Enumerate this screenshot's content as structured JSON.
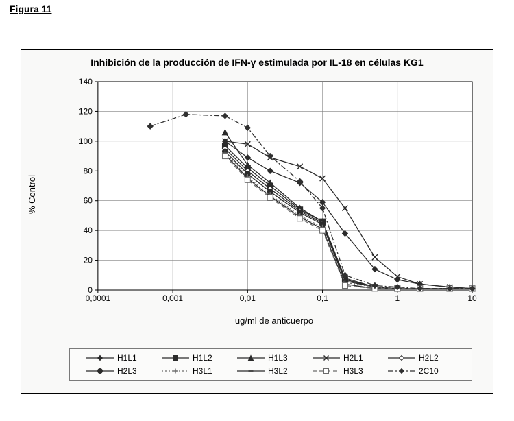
{
  "figure_label": "Figura 11",
  "chart": {
    "type": "line",
    "title": "Inhibición de la producción de IFN-γ estimulada por IL-18 en células KG1",
    "xlabel": "ug/ml de anticuerpo",
    "ylabel": "% Control",
    "background_color": "#f9f9f8",
    "plot_bg": "#ffffff",
    "border_color": "#000000",
    "grid_color": "#808080",
    "axis_color": "#000000",
    "title_fontsize": 14,
    "label_fontsize": 13,
    "tick_fontsize": 12,
    "x_scale": "log",
    "xlim": [
      0.0001,
      10
    ],
    "xticks": [
      0.0001,
      0.001,
      0.01,
      0.1,
      1,
      10
    ],
    "xtick_labels": [
      "0,0001",
      "0,001",
      "0,01",
      "0,1",
      "1",
      "10"
    ],
    "ylim": [
      0,
      140
    ],
    "yticks": [
      0,
      20,
      40,
      60,
      80,
      100,
      120,
      140
    ],
    "line_width": 1.3,
    "marker_size": 4,
    "series": [
      {
        "name": "H1L1",
        "marker": "diamond",
        "dash": "solid",
        "color": "#2b2b2b",
        "x": [
          0.005,
          0.01,
          0.02,
          0.05,
          0.1,
          0.2,
          0.5,
          1,
          2,
          5,
          10
        ],
        "y": [
          100,
          89,
          80,
          72,
          59,
          38,
          14,
          7,
          4,
          2,
          1
        ]
      },
      {
        "name": "H1L2",
        "marker": "square",
        "dash": "solid",
        "color": "#2b2b2b",
        "x": [
          0.005,
          0.01,
          0.02,
          0.05,
          0.1,
          0.2,
          0.5,
          1,
          2,
          5,
          10
        ],
        "y": [
          97,
          82,
          70,
          54,
          46,
          7,
          2,
          1,
          1,
          1,
          1
        ]
      },
      {
        "name": "H1L3",
        "marker": "triangle",
        "dash": "solid",
        "color": "#2b2b2b",
        "x": [
          0.005,
          0.01,
          0.02,
          0.05,
          0.1,
          0.2,
          0.5,
          1,
          2,
          5,
          10
        ],
        "y": [
          106,
          84,
          72,
          55,
          46,
          8,
          2,
          1,
          1,
          1,
          1
        ]
      },
      {
        "name": "H2L1",
        "marker": "x",
        "dash": "solid",
        "color": "#2b2b2b",
        "x": [
          0.005,
          0.01,
          0.02,
          0.05,
          0.1,
          0.2,
          0.5,
          1,
          2,
          5,
          10
        ],
        "y": [
          100,
          98,
          89,
          83,
          75,
          55,
          22,
          9,
          4,
          2,
          1
        ]
      },
      {
        "name": "H2L2",
        "marker": "diamond-open",
        "dash": "solid",
        "color": "#2b2b2b",
        "x": [
          0.005,
          0.01,
          0.02,
          0.05,
          0.1,
          0.2,
          0.5,
          1,
          2,
          5,
          10
        ],
        "y": [
          95,
          80,
          68,
          53,
          45,
          7,
          2,
          1,
          1,
          1,
          1
        ]
      },
      {
        "name": "H2L3",
        "marker": "circle",
        "dash": "solid",
        "color": "#2b2b2b",
        "x": [
          0.005,
          0.01,
          0.02,
          0.05,
          0.1,
          0.2,
          0.5,
          1,
          2,
          5,
          10
        ],
        "y": [
          93,
          78,
          66,
          52,
          44,
          6,
          2,
          1,
          1,
          1,
          1
        ]
      },
      {
        "name": "H3L1",
        "marker": "plus",
        "dash": "dot",
        "color": "#6b6b6b",
        "x": [
          0.005,
          0.01,
          0.02,
          0.05,
          0.1,
          0.2,
          0.5,
          1,
          2,
          5,
          10
        ],
        "y": [
          92,
          76,
          64,
          50,
          42,
          5,
          2,
          1,
          1,
          1,
          1
        ]
      },
      {
        "name": "H3L2",
        "marker": "dash",
        "dash": "solid",
        "color": "#2b2b2b",
        "x": [
          0.005,
          0.01,
          0.02,
          0.05,
          0.1,
          0.2,
          0.5,
          1,
          2,
          5,
          10
        ],
        "y": [
          91,
          75,
          63,
          49,
          41,
          4,
          1,
          1,
          1,
          1,
          1
        ]
      },
      {
        "name": "H3L3",
        "marker": "square-open",
        "dash": "dash",
        "color": "#6b6b6b",
        "x": [
          0.005,
          0.01,
          0.02,
          0.05,
          0.1,
          0.2,
          0.5,
          1,
          2,
          5,
          10
        ],
        "y": [
          90,
          74,
          62,
          48,
          40,
          3,
          1,
          1,
          1,
          1,
          1
        ]
      },
      {
        "name": "2C10",
        "marker": "diamond",
        "dash": "dashdot",
        "color": "#303030",
        "x": [
          0.0005,
          0.0015,
          0.005,
          0.01,
          0.02,
          0.05,
          0.1,
          0.2,
          0.5,
          1,
          2,
          5,
          10
        ],
        "y": [
          110,
          118,
          117,
          109,
          90,
          73,
          55,
          10,
          3,
          2,
          1,
          1,
          1
        ]
      }
    ]
  }
}
